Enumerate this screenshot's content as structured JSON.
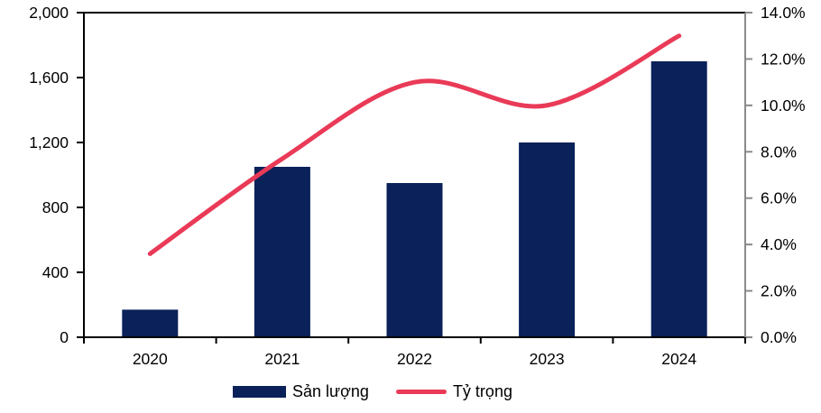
{
  "chart_data": {
    "type": "combo",
    "title": "",
    "categories": [
      "2020",
      "2021",
      "2022",
      "2023",
      "2024"
    ],
    "series": [
      {
        "name": "Sản lượng",
        "type": "bar",
        "axis": "left",
        "values": [
          170,
          1050,
          950,
          1200,
          1700
        ]
      },
      {
        "name": "Tỷ trọng",
        "type": "line",
        "axis": "right",
        "smooth": true,
        "values": [
          3.6,
          7.7,
          11.0,
          10.0,
          13.0
        ]
      }
    ],
    "left_axis": {
      "min": 0,
      "max": 2000,
      "step": 400,
      "tick_labels": [
        "0",
        "400",
        "800",
        "1,200",
        "1,600",
        "2,000"
      ]
    },
    "right_axis": {
      "min": 0,
      "max": 14,
      "step": 2,
      "tick_labels": [
        "0.0%",
        "2.0%",
        "4.0%",
        "6.0%",
        "8.0%",
        "10.0%",
        "12.0%",
        "14.0%"
      ]
    },
    "grid": false,
    "legend_position": "bottom"
  },
  "legend": {
    "bar_label": "Sản lượng",
    "line_label": "Tỷ trọng"
  },
  "colors": {
    "bar": "#0a2159",
    "line": "#e93a57",
    "axis": "#000000",
    "right_axis": "#8a8a8a",
    "text": "#000000",
    "background": "#ffffff"
  }
}
